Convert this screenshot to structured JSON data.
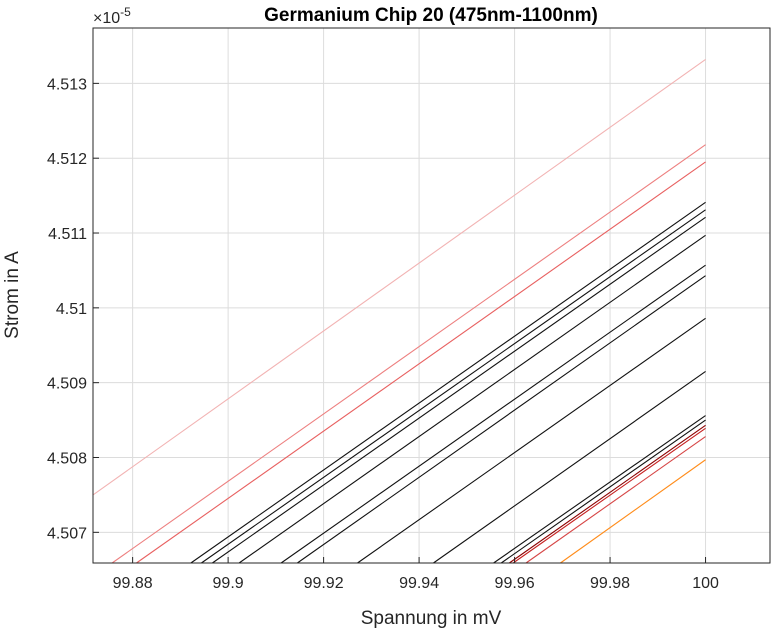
{
  "chart_data": {
    "type": "line",
    "title": "Germanium Chip 20 (475nm-1100nm)",
    "xlabel": "Spannung in mV",
    "ylabel": "Strom in A",
    "y_exponent_base": "×10",
    "y_exponent_power": "-5",
    "xlim": [
      99.8717,
      100.0135
    ],
    "ylim": [
      4.50659,
      4.51374
    ],
    "xticks": [
      99.88,
      99.9,
      99.92,
      99.94,
      99.96,
      99.98,
      100
    ],
    "xtick_labels": [
      "99.88",
      "99.9",
      "99.92",
      "99.94",
      "99.96",
      "99.98",
      "100"
    ],
    "yticks": [
      4.507,
      4.508,
      4.509,
      4.51,
      4.511,
      4.512,
      4.513
    ],
    "ytick_labels": [
      "4.507",
      "4.508",
      "4.509",
      "4.51",
      "4.511",
      "4.512",
      "4.513"
    ],
    "grid": true,
    "series": [
      {
        "color": "#f2b3b3",
        "x": [
          99.8717,
          100.0
        ],
        "y": [
          4.5075,
          4.51332
        ]
      },
      {
        "color": "#ed7f7f",
        "x": [
          99.8757,
          100.0
        ],
        "y": [
          4.50659,
          4.51218
        ]
      },
      {
        "color": "#e86060",
        "x": [
          99.8808,
          100.0
        ],
        "y": [
          4.50659,
          4.51195
        ]
      },
      {
        "color": "#111111",
        "x": [
          99.8922,
          100.0
        ],
        "y": [
          4.50659,
          4.51141
        ]
      },
      {
        "color": "#111111",
        "x": [
          99.8944,
          100.0
        ],
        "y": [
          4.50659,
          4.51131
        ]
      },
      {
        "color": "#111111",
        "x": [
          99.8967,
          100.0
        ],
        "y": [
          4.50659,
          4.51121
        ]
      },
      {
        "color": "#111111",
        "x": [
          99.9023,
          100.0
        ],
        "y": [
          4.50659,
          4.51097
        ]
      },
      {
        "color": "#111111",
        "x": [
          99.9111,
          100.0
        ],
        "y": [
          4.50659,
          4.51057
        ]
      },
      {
        "color": "#111111",
        "x": [
          99.9145,
          100.0
        ],
        "y": [
          4.50659,
          4.51043
        ]
      },
      {
        "color": "#111111",
        "x": [
          99.9271,
          100.0
        ],
        "y": [
          4.50659,
          4.50986
        ]
      },
      {
        "color": "#111111",
        "x": [
          99.943,
          100.0
        ],
        "y": [
          4.50659,
          4.50915
        ]
      },
      {
        "color": "#111111",
        "x": [
          99.9556,
          100.0
        ],
        "y": [
          4.50659,
          4.50856
        ]
      },
      {
        "color": "#111111",
        "x": [
          99.9572,
          100.0
        ],
        "y": [
          4.50659,
          4.5085
        ]
      },
      {
        "color": "#8b0000",
        "x": [
          99.9589,
          100.0
        ],
        "y": [
          4.50659,
          4.50843
        ]
      },
      {
        "color": "#c62020",
        "x": [
          99.9597,
          100.0
        ],
        "y": [
          4.50659,
          4.50839
        ]
      },
      {
        "color": "#d64545",
        "x": [
          99.9624,
          100.0
        ],
        "y": [
          4.50659,
          4.50828
        ]
      },
      {
        "color": "#ff8c1a",
        "x": [
          99.9696,
          100.0
        ],
        "y": [
          4.50659,
          4.50797
        ]
      }
    ]
  }
}
